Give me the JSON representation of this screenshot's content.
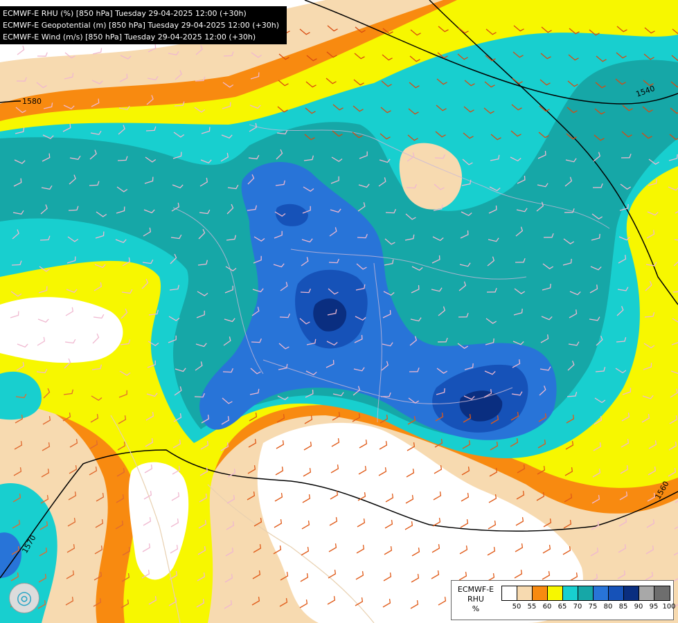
{
  "titles": [
    "ECMWF-E RHU (%) [850 hPa] Tuesday 29-04-2025 12:00 (+30h)",
    "ECMWF-E Geopotential (m) [850 hPa] Tuesday 29-04-2025 12:00 (+30h)",
    "ECMWF-E Wind (m/s) [850 hPa] Tuesday 29-04-2025 12:00 (+30h)"
  ],
  "legend": {
    "name_lines": [
      "ECMWF-E",
      "RHU",
      "%"
    ],
    "swatch_colors": [
      "#ffffff",
      "#f7dab0",
      "#f88a10",
      "#f7f700",
      "#18cfcf",
      "#16a7a7",
      "#2874d8",
      "#1652b8",
      "#0a2e80",
      "#a8a8a8",
      "#6e6e6e"
    ],
    "ticks": [
      "50",
      "55",
      "60",
      "65",
      "70",
      "75",
      "80",
      "85",
      "90",
      "95",
      "100"
    ]
  },
  "contour_labels": [
    "1580",
    "1540",
    "1570",
    "1560"
  ],
  "logo_icon": "ecmwf-swirl-icon"
}
